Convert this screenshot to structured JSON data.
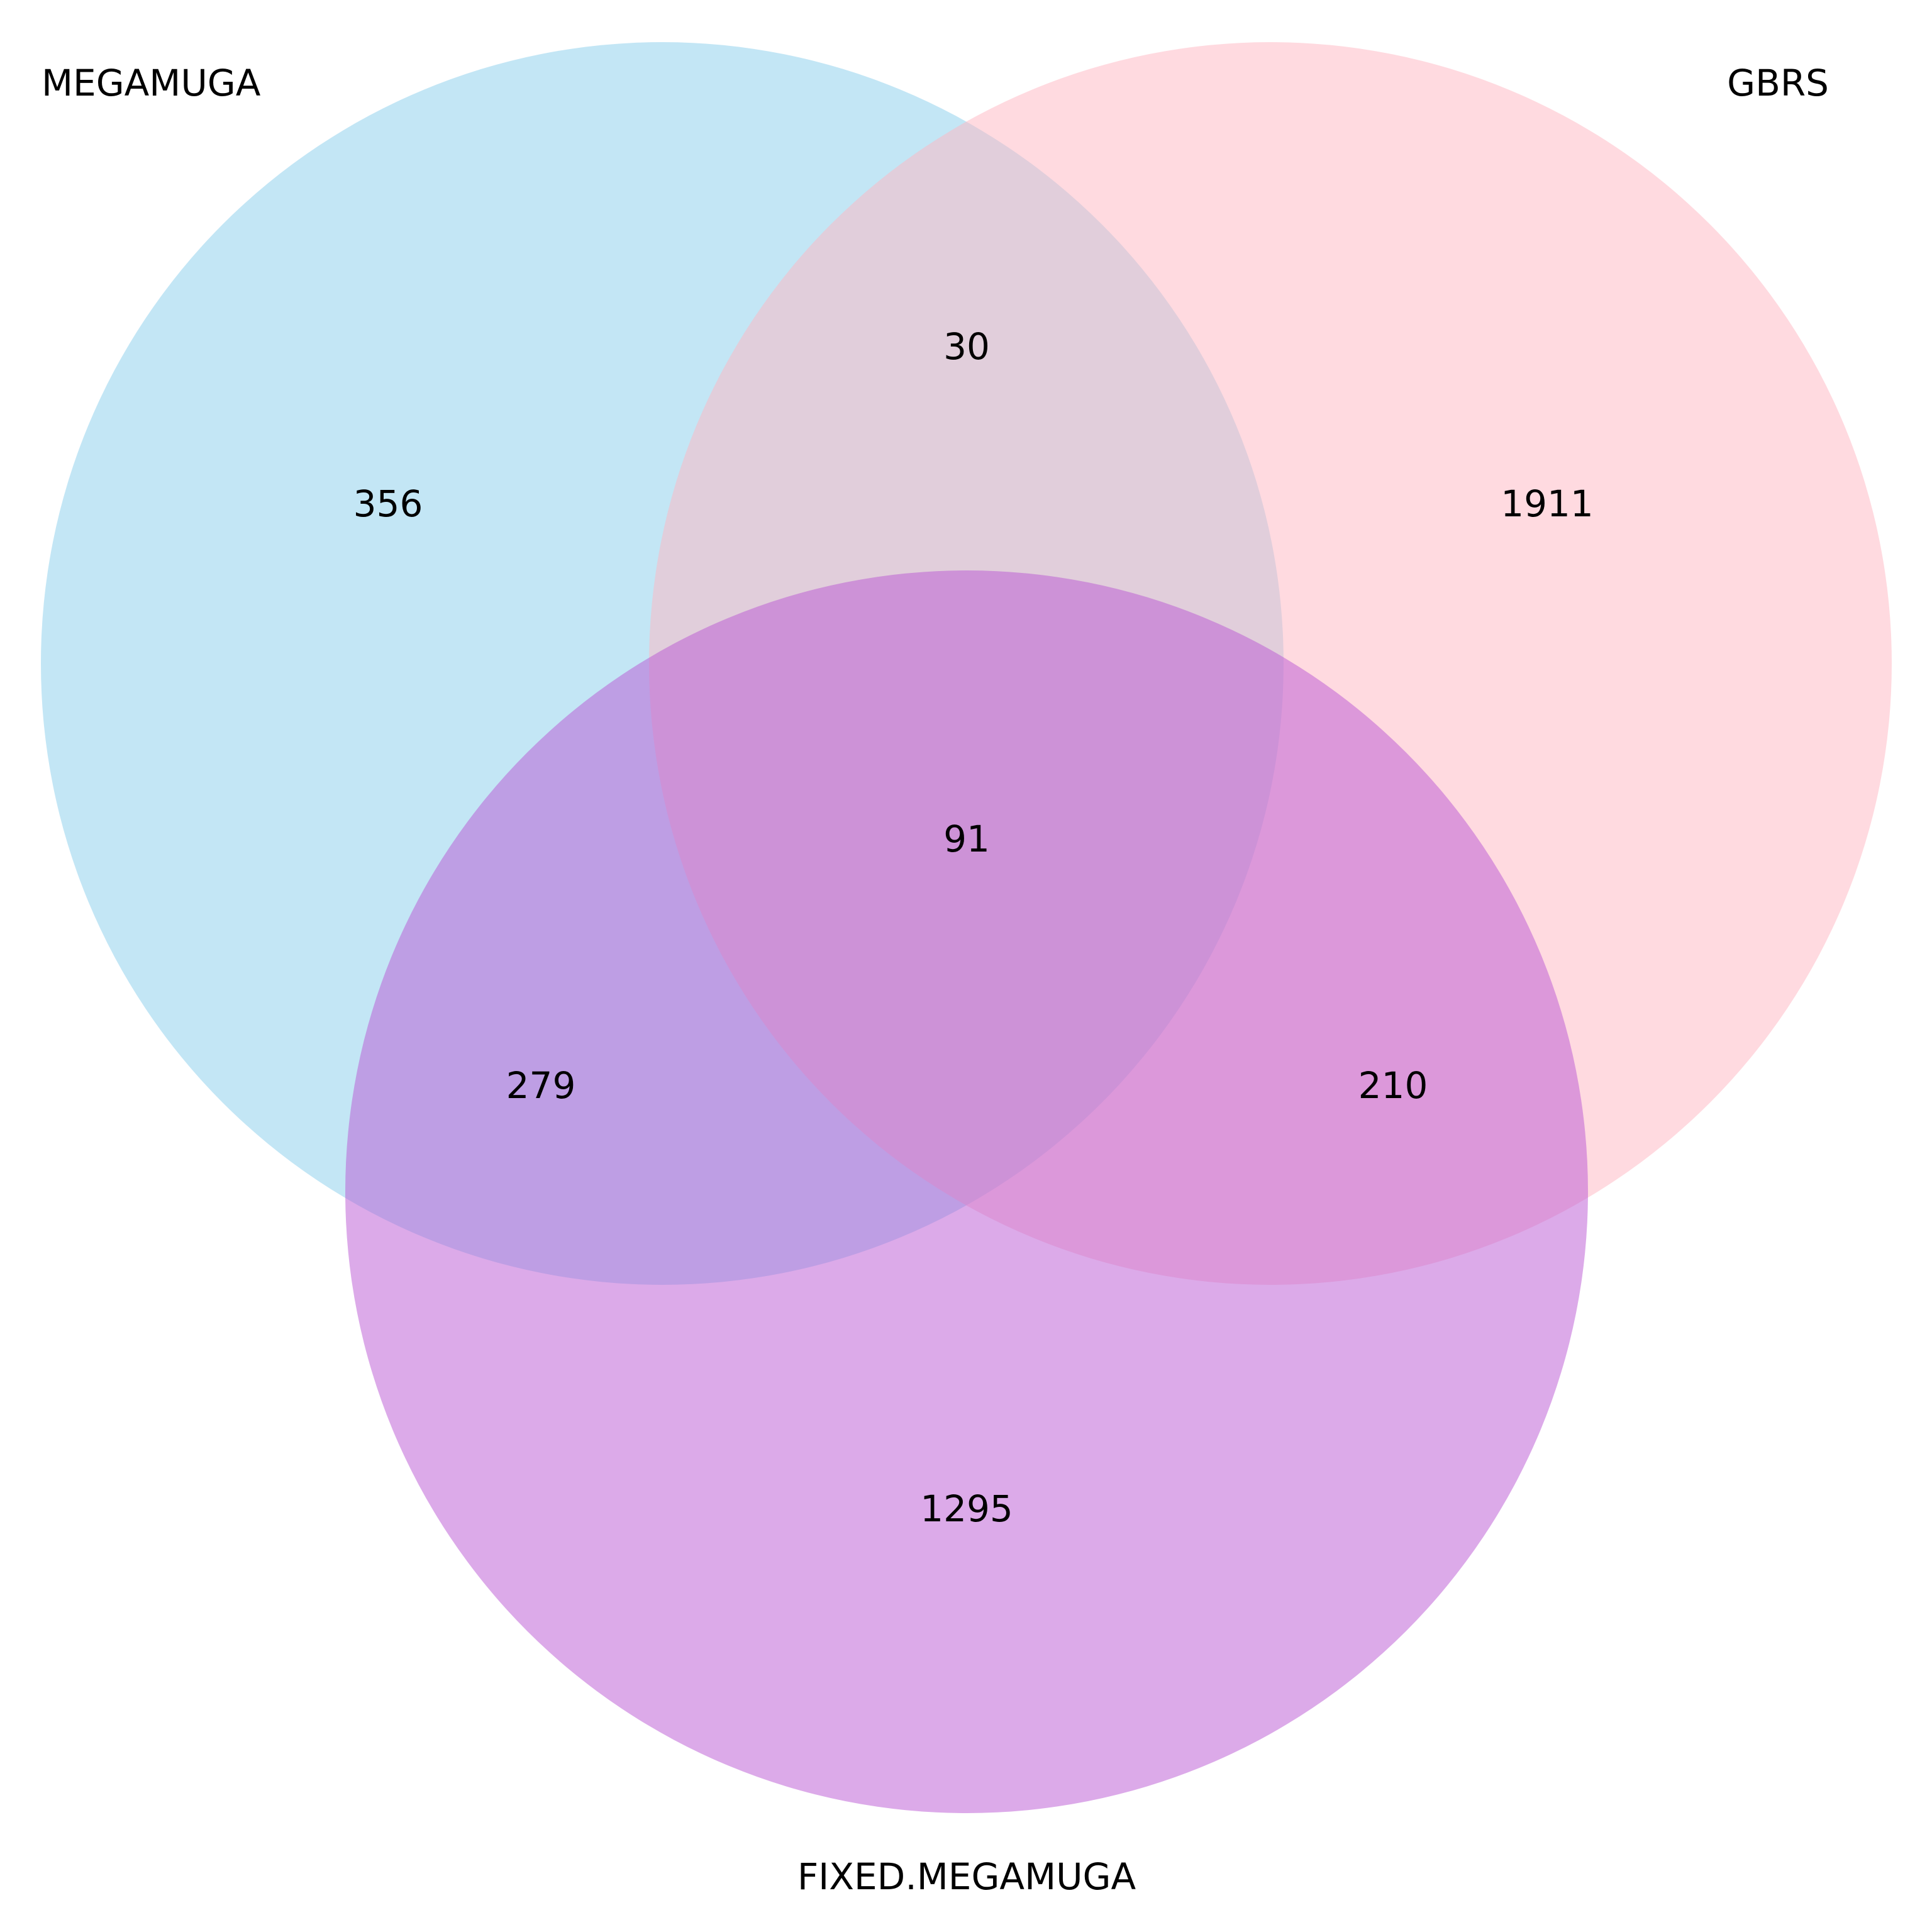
{
  "sets": [
    {
      "id": "megamuga",
      "name": "MEGAMUGA",
      "color": "#87CEEB"
    },
    {
      "id": "gbrs",
      "name": "GBRS",
      "color": "#FFB6C1"
    },
    {
      "id": "fixed_megamuga",
      "name": "FIXED.MEGAMUGA",
      "color": "#BA55D3"
    }
  ],
  "regions": {
    "megamuga_only": "356",
    "gbrs_only": "1911",
    "fixed_megamuga_only": "1295",
    "megamuga_gbrs": "30",
    "megamuga_fixed_megamuga": "279",
    "gbrs_fixed_megamuga": "210",
    "all_three": "91"
  }
}
